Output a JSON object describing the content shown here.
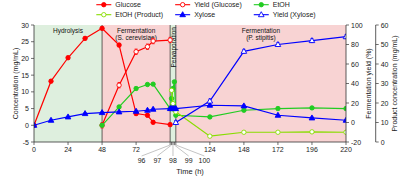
{
  "chart_data": {
    "type": "line",
    "xlabel": "Time (h)",
    "ylabel": "Concentration (mg/mL)",
    "y2label": "Fermentation yield (%)",
    "y3label": "Product concentration (mg/mL)",
    "xlim": [
      0,
      220
    ],
    "xticks": [
      0,
      24,
      48,
      72,
      96,
      97,
      98,
      99,
      100,
      124,
      148,
      172,
      196,
      220
    ],
    "ylim": [
      -5,
      30
    ],
    "yticks": [
      -5,
      0,
      5,
      10,
      15,
      20,
      25,
      30
    ],
    "y2lim": [
      -20,
      100
    ],
    "y2ticks": [
      -20,
      0,
      20,
      40,
      60,
      80,
      100
    ],
    "y3lim": [
      0,
      60
    ],
    "y3ticks": [
      0,
      10,
      20,
      30,
      40,
      50,
      60
    ],
    "grid": false,
    "legend": "top",
    "regions": [
      {
        "label": "Hydrolysis",
        "x0": 0,
        "x1": 48,
        "color": "#d0e8d0"
      },
      {
        "label": "Fermentation\n(S. cerevisiae)",
        "x0": 48,
        "x1": 96,
        "color": "#f5c0c0"
      },
      {
        "label": "Pervaporation",
        "x0": 96,
        "x1": 100,
        "color": "#d0e8d0"
      },
      {
        "label": "Fermentation\n(P. stipitis)",
        "x0": 100,
        "x1": 220,
        "color": "#f5c0c0"
      }
    ],
    "dividers": [
      48,
      96,
      100
    ],
    "series": [
      {
        "name": "Glucose",
        "color": "red",
        "marker": "circle",
        "x": [
          0,
          12,
          24,
          36,
          48,
          60,
          72,
          80,
          84,
          96
        ],
        "values": [
          0,
          13.2,
          20.2,
          26.0,
          29.0,
          24.0,
          3.5,
          3.0,
          0.9,
          0.2
        ],
        "errors": [
          0.5,
          0.5,
          0.5,
          0.5,
          0.5,
          0.5,
          0.5,
          0.5,
          0.5,
          0.5
        ]
      },
      {
        "name": "Yield (Glucose)",
        "color": "red",
        "marker": "open-circle",
        "x": [
          48,
          60,
          72,
          80,
          84,
          96
        ],
        "values": [
          0,
          12.0,
          22.0,
          23.5,
          25.2,
          25.5
        ],
        "errors": [
          0.8,
          0.8,
          0.8,
          0.8,
          0.8,
          0.8
        ]
      },
      {
        "name": "EtOH",
        "color": "#22cc22",
        "marker": "circle",
        "x": [
          48,
          60,
          72,
          80,
          84,
          96,
          97,
          98,
          99,
          100,
          124,
          148,
          172,
          196,
          220
        ],
        "values": [
          0,
          5.5,
          11.0,
          12.2,
          12.3,
          5.0,
          8.0,
          11.0,
          13.0,
          3.0,
          2.5,
          4.5,
          5.0,
          5.2,
          5.0
        ],
        "errors": [
          0.4,
          0.4,
          0.4,
          0.4,
          0.4,
          0.4,
          0.4,
          0.4,
          0.4,
          0.4,
          0.4,
          0.4,
          0.4,
          0.4,
          0.4
        ]
      },
      {
        "name": "EtOH (Product)",
        "color": "#88dd00",
        "marker": "open-circle",
        "axis": "y3",
        "x": [
          97,
          98,
          99,
          100,
          124,
          148,
          172,
          196,
          220
        ],
        "values": [
          26.5,
          19.7,
          16.5,
          15.5,
          3.0,
          5.0,
          5.0,
          5.2,
          5.0
        ],
        "errors": [
          0.5,
          0.5,
          0.5,
          0.5,
          0.5,
          0.5,
          0.5,
          0.5,
          0.5
        ]
      },
      {
        "name": "Xylose",
        "color": "blue",
        "marker": "triangle",
        "x": [
          0,
          12,
          24,
          36,
          48,
          60,
          72,
          80,
          84,
          96,
          97,
          98,
          99,
          100,
          124,
          148,
          172,
          196,
          220
        ],
        "values": [
          0,
          1.5,
          2.5,
          3.5,
          3.8,
          4.0,
          4.2,
          4.5,
          4.8,
          5.0,
          5.0,
          5.0,
          5.0,
          5.0,
          6.0,
          5.8,
          3.0,
          2.2,
          1.5
        ],
        "errors": [
          0.3,
          0.3,
          0.3,
          0.3,
          0.3,
          0.3,
          0.3,
          0.3,
          0.3,
          0.3,
          0.3,
          0.3,
          0.3,
          0.3,
          0.3,
          0.3,
          0.3,
          0.3,
          0.3
        ]
      },
      {
        "name": "Yield (Xylose)",
        "color": "blue",
        "marker": "open-triangle",
        "axis": "y2",
        "x": [
          100,
          124,
          148,
          172,
          196,
          220
        ],
        "values": [
          0,
          22.0,
          73.0,
          80.0,
          84.0,
          88.0
        ],
        "errors": [
          2.0,
          2.0,
          2.0,
          2.0,
          2.0,
          2.0
        ]
      }
    ]
  }
}
